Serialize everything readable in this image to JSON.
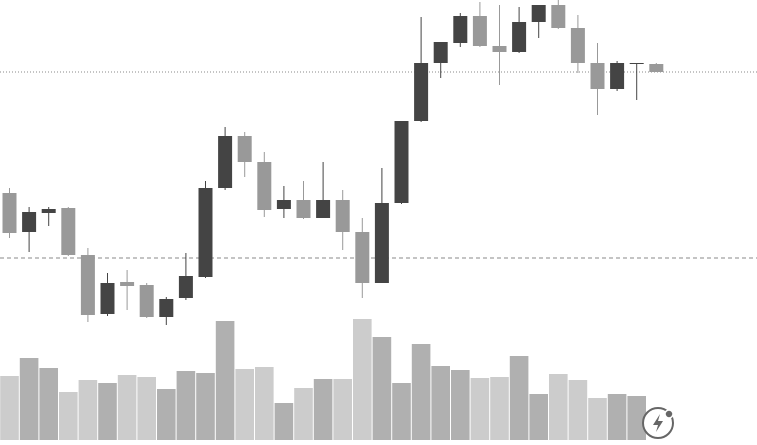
{
  "chart_data": {
    "type": "candlestick",
    "ylim": [
      0,
      330
    ],
    "volume_ylim": [
      0,
      440
    ],
    "up_color": "#444444",
    "down_color": "#999999",
    "volume_up_color": "#b0b0b0",
    "volume_down_color": "#cccccc",
    "open": [
      137,
      98,
      117,
      122,
      75,
      16,
      48,
      45,
      13,
      32,
      53,
      142,
      194,
      168,
      121,
      130,
      112,
      130,
      98,
      47,
      127,
      209,
      267,
      287,
      314,
      284,
      278,
      308,
      325,
      302,
      267,
      241,
      266,
      266
    ],
    "high": [
      142,
      123,
      123,
      123,
      82,
      57,
      60,
      47,
      33,
      77,
      149,
      203,
      198,
      178,
      144,
      149,
      168,
      140,
      112,
      162,
      209,
      313,
      288,
      317,
      328,
      325,
      323,
      325,
      330,
      315,
      287,
      269,
      267,
      267
    ],
    "low": [
      92,
      78,
      104,
      74,
      8,
      14,
      20,
      12,
      5,
      30,
      52,
      140,
      153,
      113,
      112,
      111,
      112,
      80,
      32,
      47,
      126,
      208,
      252,
      283,
      283,
      245,
      277,
      292,
      301,
      257,
      215,
      239,
      230,
      258
    ],
    "close": [
      97,
      118,
      121,
      75,
      15,
      47,
      44,
      13,
      31,
      54,
      142,
      194,
      168,
      120,
      130,
      112,
      130,
      98,
      47,
      127,
      209,
      267,
      288,
      314,
      284,
      278,
      308,
      325,
      302,
      267,
      241,
      267,
      267,
      258
    ],
    "volume": [
      64,
      82,
      72,
      48,
      60,
      57,
      65,
      63,
      51,
      69,
      67,
      119,
      71,
      73,
      37,
      52,
      61,
      61,
      121,
      103,
      57,
      96,
      74,
      70,
      62,
      63,
      84,
      46,
      66,
      60,
      42,
      46,
      44,
      null
    ],
    "reference_lines": [
      {
        "value": 258,
        "style": "dotted"
      },
      {
        "value": 72,
        "style": "dashed"
      }
    ]
  }
}
